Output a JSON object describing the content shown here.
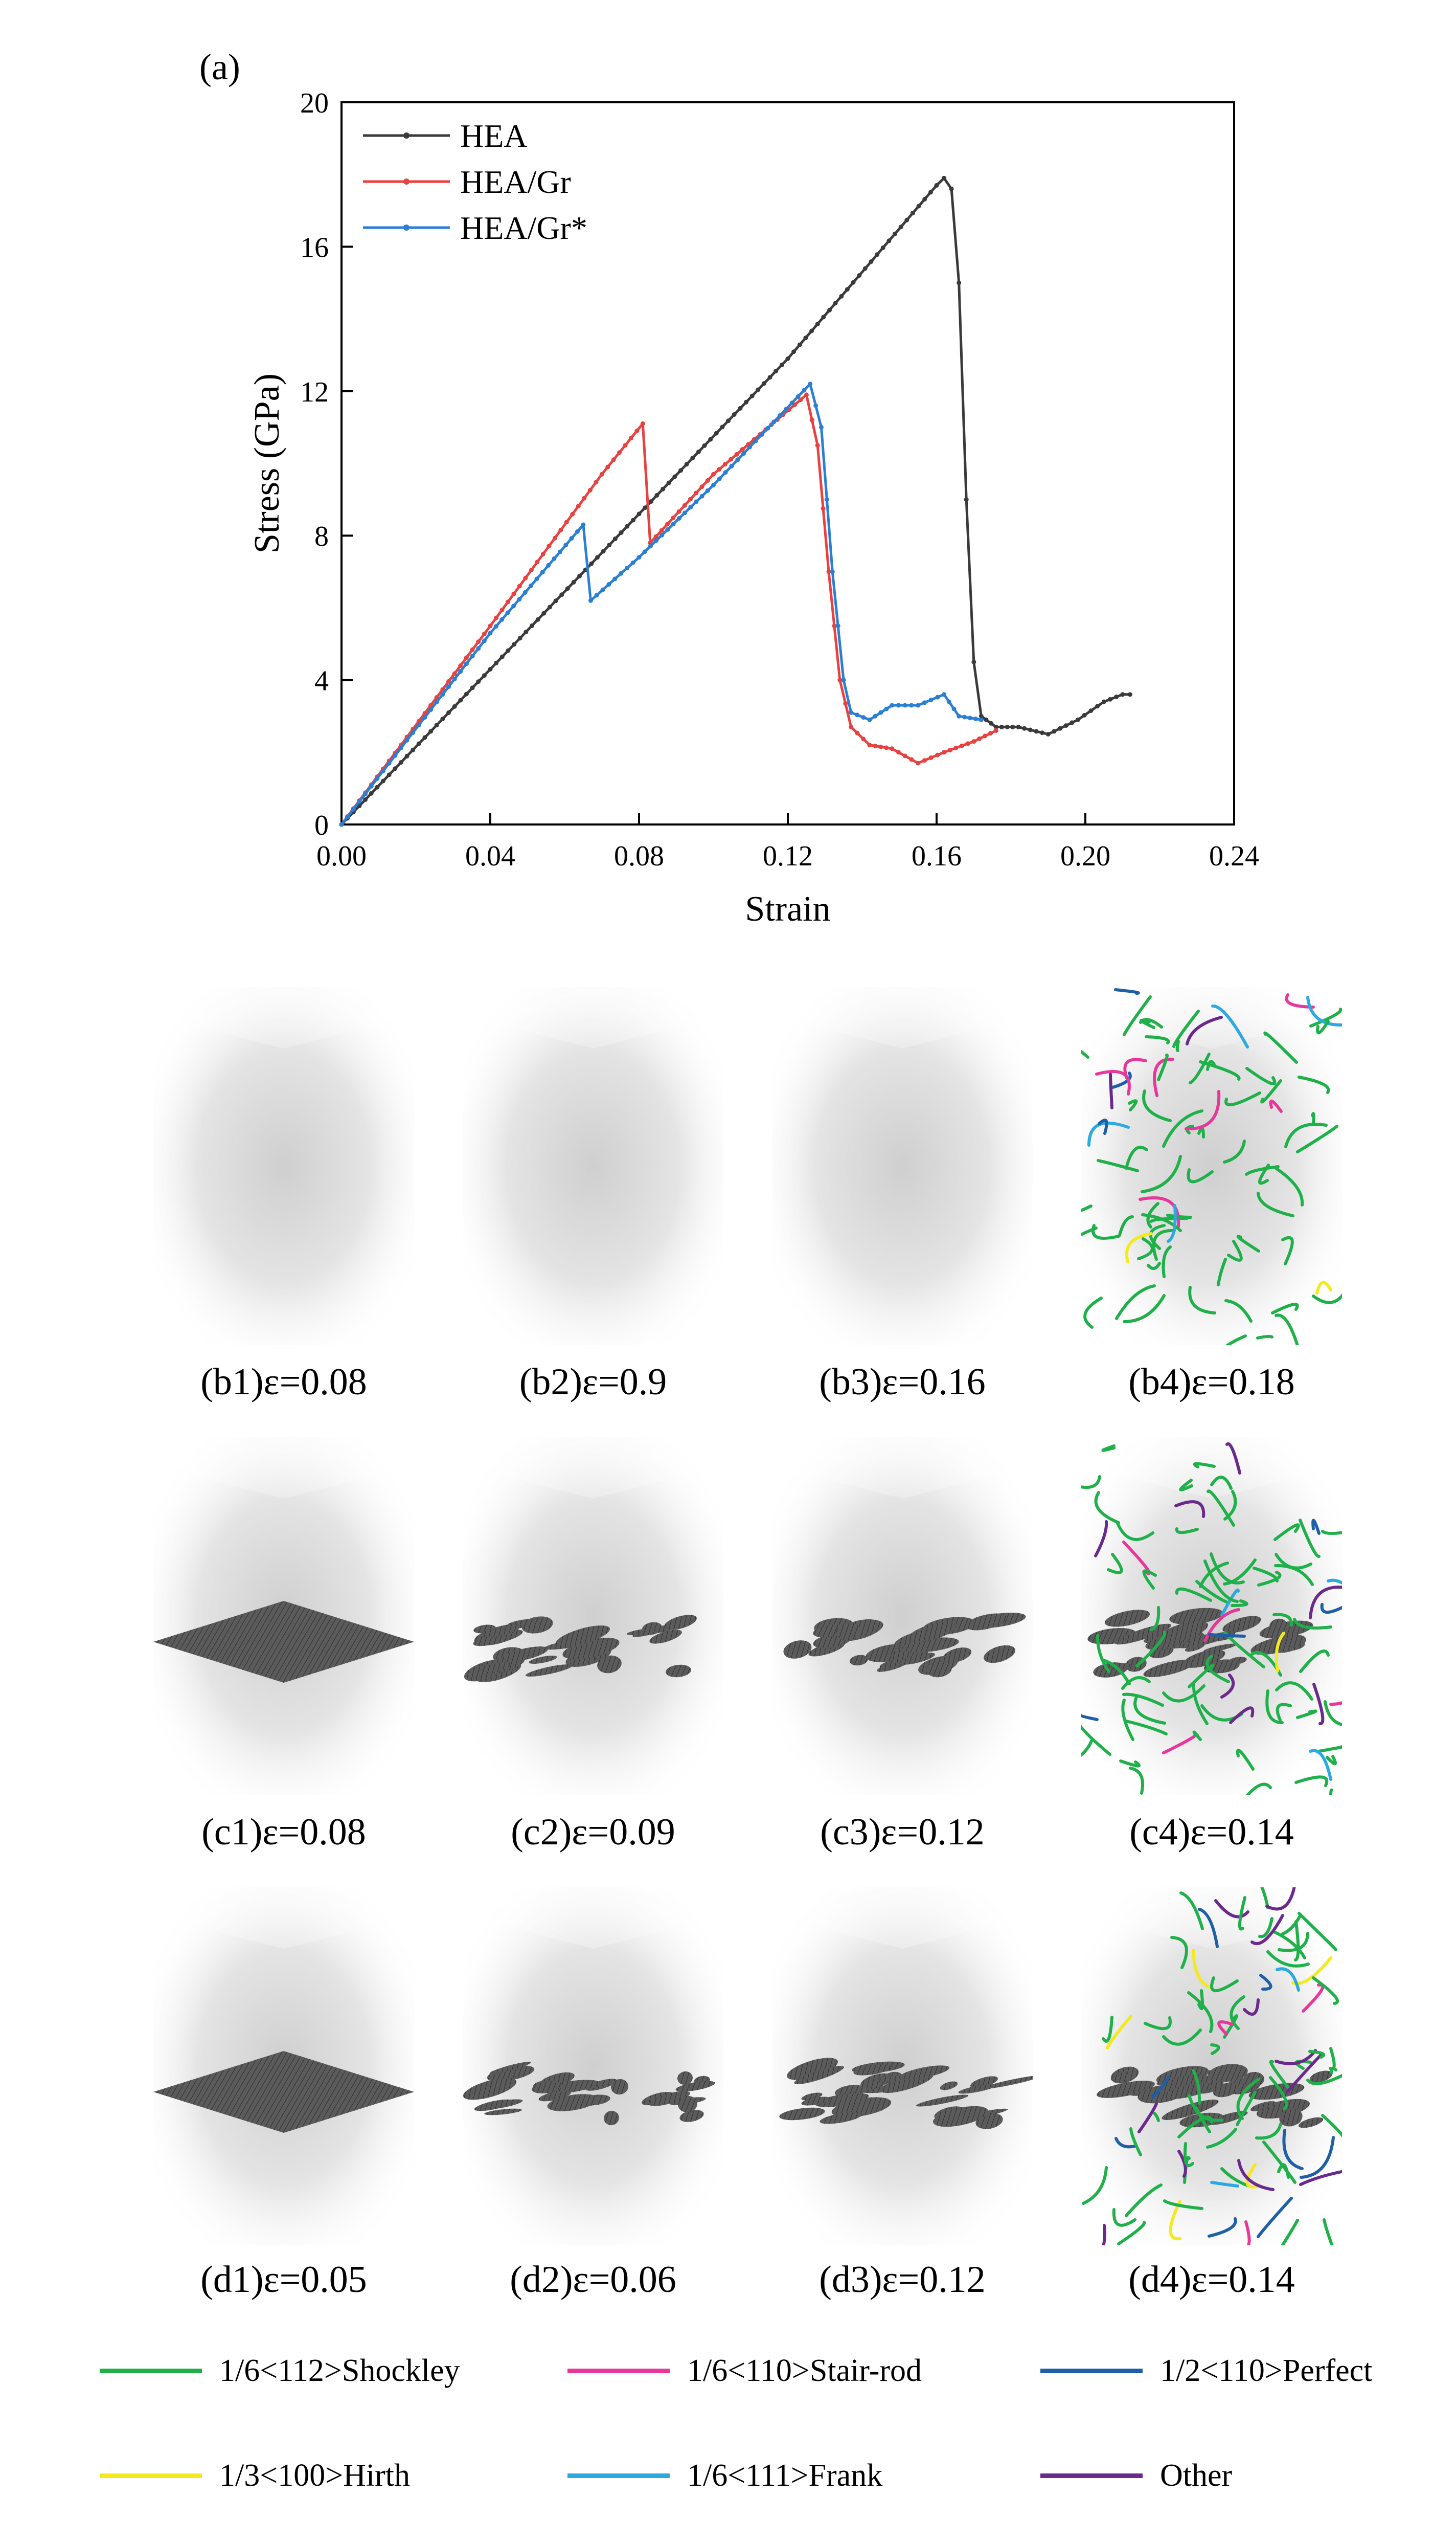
{
  "figure_label": "(a)",
  "chart_data": {
    "type": "line",
    "xlabel": "Strain",
    "ylabel": "Stress (GPa)",
    "xlim": [
      0,
      0.24
    ],
    "ylim": [
      0,
      20
    ],
    "x_ticks": [
      "0.00",
      "0.04",
      "0.08",
      "0.12",
      "0.16",
      "0.20",
      "0.24"
    ],
    "y_ticks": [
      "0",
      "4",
      "8",
      "12",
      "16",
      "20"
    ],
    "legend_position": "top-left",
    "grid": false,
    "series": [
      {
        "name": "HEA",
        "color": "#3a3a3a",
        "points": [
          [
            0.0,
            0.0
          ],
          [
            0.04,
            4.3
          ],
          [
            0.08,
            8.6
          ],
          [
            0.12,
            12.9
          ],
          [
            0.16,
            17.7
          ],
          [
            0.162,
            17.9
          ],
          [
            0.164,
            17.6
          ],
          [
            0.166,
            15.0
          ],
          [
            0.168,
            9.0
          ],
          [
            0.17,
            4.5
          ],
          [
            0.172,
            3.0
          ],
          [
            0.176,
            2.7
          ],
          [
            0.182,
            2.7
          ],
          [
            0.19,
            2.5
          ],
          [
            0.198,
            2.9
          ],
          [
            0.205,
            3.4
          ],
          [
            0.21,
            3.6
          ],
          [
            0.212,
            3.6
          ]
        ]
      },
      {
        "name": "HEA/Gr",
        "color": "#e8413f",
        "points": [
          [
            0.0,
            0.0
          ],
          [
            0.04,
            5.5
          ],
          [
            0.07,
            9.7
          ],
          [
            0.081,
            11.1
          ],
          [
            0.083,
            7.8
          ],
          [
            0.1,
            9.7
          ],
          [
            0.125,
            11.9
          ],
          [
            0.128,
            10.5
          ],
          [
            0.131,
            7.0
          ],
          [
            0.134,
            4.0
          ],
          [
            0.137,
            2.7
          ],
          [
            0.142,
            2.2
          ],
          [
            0.148,
            2.1
          ],
          [
            0.155,
            1.7
          ],
          [
            0.162,
            2.0
          ],
          [
            0.17,
            2.3
          ],
          [
            0.176,
            2.6
          ]
        ]
      },
      {
        "name": "HEA/Gr*",
        "color": "#2a7fd4",
        "points": [
          [
            0.0,
            0.0
          ],
          [
            0.04,
            5.3
          ],
          [
            0.065,
            8.3
          ],
          [
            0.067,
            6.2
          ],
          [
            0.08,
            7.4
          ],
          [
            0.1,
            9.4
          ],
          [
            0.126,
            12.2
          ],
          [
            0.129,
            11.0
          ],
          [
            0.132,
            7.0
          ],
          [
            0.135,
            4.0
          ],
          [
            0.137,
            3.1
          ],
          [
            0.142,
            2.9
          ],
          [
            0.148,
            3.3
          ],
          [
            0.155,
            3.3
          ],
          [
            0.162,
            3.6
          ],
          [
            0.166,
            3.0
          ],
          [
            0.172,
            2.9
          ]
        ]
      }
    ]
  },
  "panels": [
    {
      "id": "b1",
      "label": "(b1)ε=0.08",
      "graphene": "none",
      "dislocations": false
    },
    {
      "id": "b2",
      "label": "(b2)ε=0.9",
      "graphene": "none",
      "dislocations": false
    },
    {
      "id": "b3",
      "label": "(b3)ε=0.16",
      "graphene": "none",
      "dislocations": false
    },
    {
      "id": "b4",
      "label": "(b4)ε=0.18",
      "graphene": "none",
      "dislocations": true
    },
    {
      "id": "c1",
      "label": "(c1)ε=0.08",
      "graphene": "intact",
      "dislocations": false
    },
    {
      "id": "c2",
      "label": "(c2)ε=0.09",
      "graphene": "fractured",
      "dislocations": false
    },
    {
      "id": "c3",
      "label": "(c3)ε=0.12",
      "graphene": "fractured",
      "dislocations": false
    },
    {
      "id": "c4",
      "label": "(c4)ε=0.14",
      "graphene": "fractured",
      "dislocations": true
    },
    {
      "id": "d1",
      "label": "(d1)ε=0.05",
      "graphene": "intact",
      "dislocations": false
    },
    {
      "id": "d2",
      "label": "(d2)ε=0.06",
      "graphene": "fractured",
      "dislocations": false
    },
    {
      "id": "d3",
      "label": "(d3)ε=0.12",
      "graphene": "fractured",
      "dislocations": false
    },
    {
      "id": "d4",
      "label": "(d4)ε=0.14",
      "graphene": "fractured",
      "dislocations": true
    }
  ],
  "legend": [
    {
      "label": "1/6<112>Shockley",
      "color": "#1fb04a"
    },
    {
      "label": "1/6<110>Stair-rod",
      "color": "#e8379a"
    },
    {
      "label": "1/2<110>Perfect",
      "color": "#1f5fa8"
    },
    {
      "label": "1/3<100>Hirth",
      "color": "#f2ea1c"
    },
    {
      "label": "1/6<111>Frank",
      "color": "#2ba9e0"
    },
    {
      "label": "Other",
      "color": "#6a2a8c"
    }
  ]
}
